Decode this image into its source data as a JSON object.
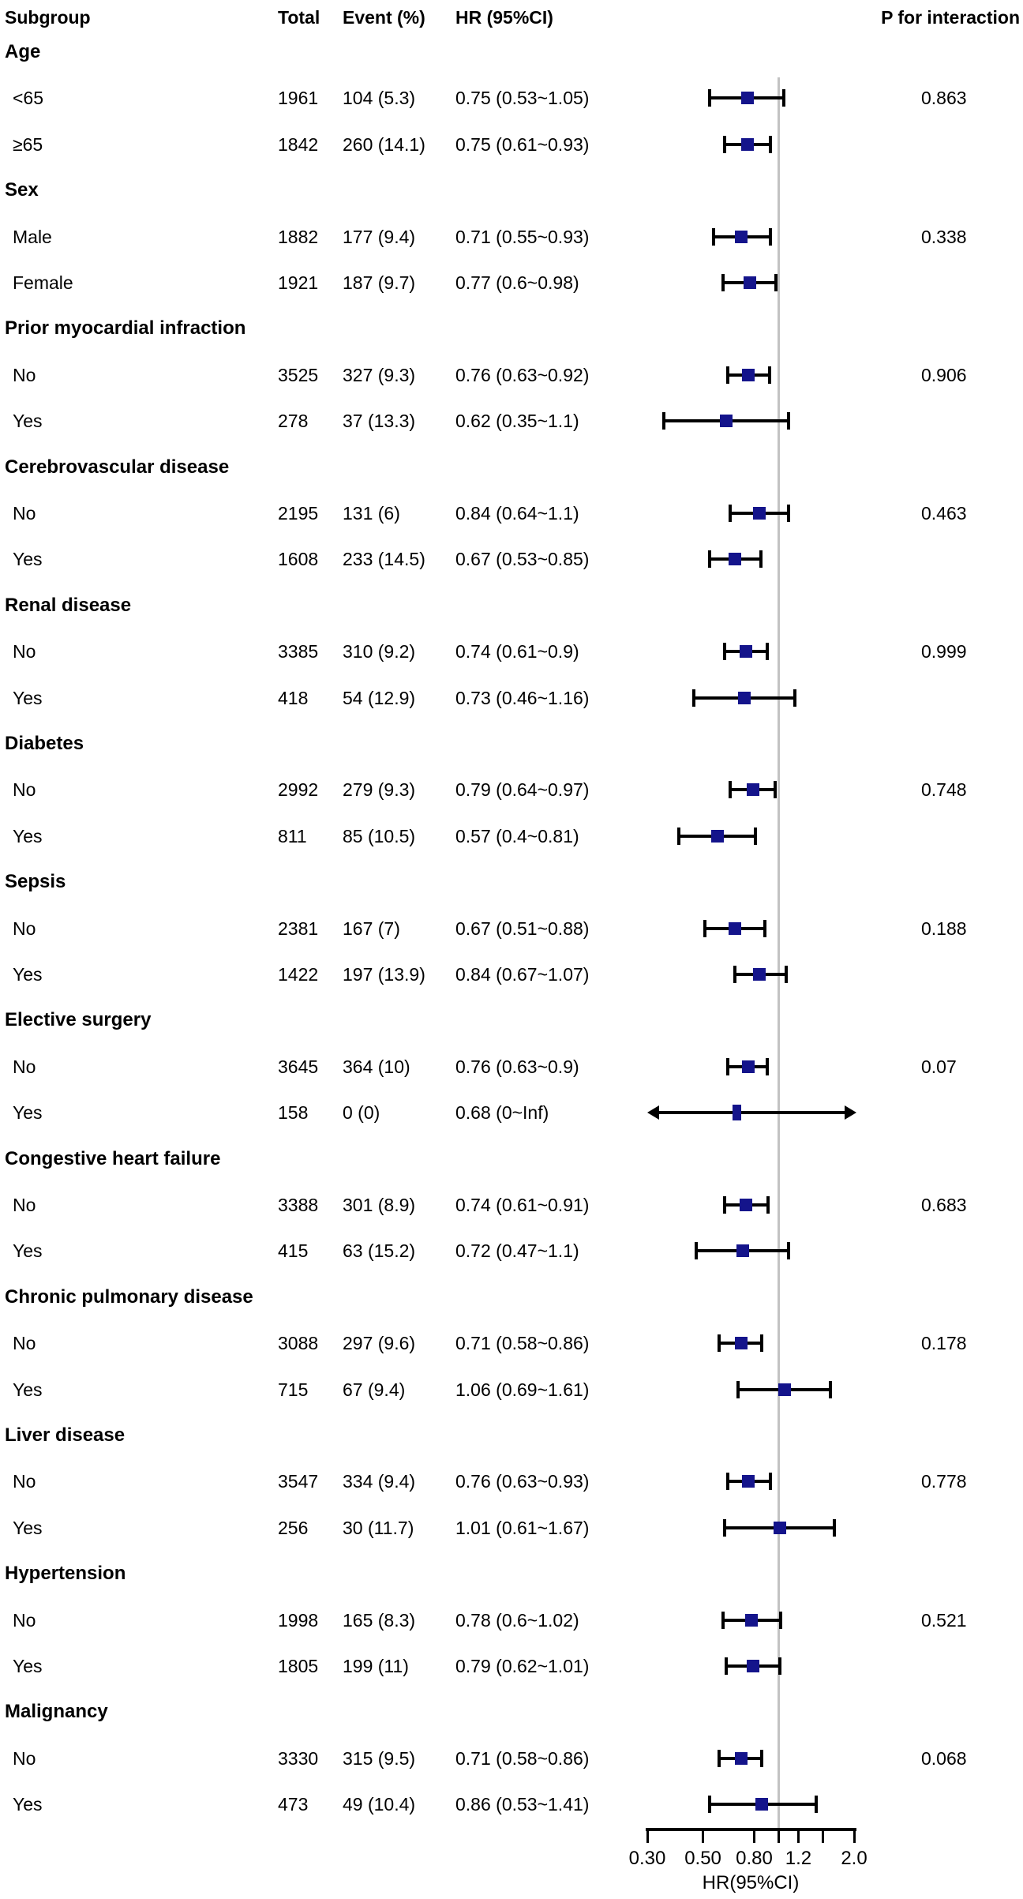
{
  "header": {
    "subgroup": "Subgroup",
    "total": "Total",
    "event": "Event (%)",
    "hr": "HR (95%CI)",
    "p_interaction": "P for interaction"
  },
  "colors": {
    "marker": "#14148b",
    "ci_bar": "#000000",
    "reference_line": "#c2c2c2"
  },
  "chart_data": {
    "type": "scatter",
    "subtype": "forest-plot",
    "xlabel": "HR(95%CI)",
    "x_scale": "log",
    "xlim": [
      0.3,
      2.0
    ],
    "reference_line": 1.0,
    "x_ticks": [
      {
        "value": 0.3,
        "label": "0.30"
      },
      {
        "value": 0.5,
        "label": "0.50"
      },
      {
        "value": 0.8,
        "label": "0.80"
      },
      {
        "value": 1.0,
        "label": null
      },
      {
        "value": 1.2,
        "label": "1.2"
      },
      {
        "value": 1.5,
        "label": null
      },
      {
        "value": 2.0,
        "label": "2.0"
      }
    ],
    "sections": [
      {
        "group": "Age",
        "p_interaction": "0.863",
        "rows": [
          {
            "label": "<65",
            "total": "1961",
            "event": "104 (5.3)",
            "hr_text": "0.75 (0.53~1.05)",
            "hr": 0.75,
            "lo": 0.53,
            "hi": 1.05
          },
          {
            "label": "≥65",
            "total": "1842",
            "event": "260 (14.1)",
            "hr_text": "0.75 (0.61~0.93)",
            "hr": 0.75,
            "lo": 0.61,
            "hi": 0.93
          }
        ]
      },
      {
        "group": "Sex",
        "p_interaction": "0.338",
        "rows": [
          {
            "label": "Male",
            "total": "1882",
            "event": "177 (9.4)",
            "hr_text": "0.71 (0.55~0.93)",
            "hr": 0.71,
            "lo": 0.55,
            "hi": 0.93
          },
          {
            "label": "Female",
            "total": "1921",
            "event": "187 (9.7)",
            "hr_text": "0.77 (0.6~0.98)",
            "hr": 0.77,
            "lo": 0.6,
            "hi": 0.98
          }
        ]
      },
      {
        "group": "Prior myocardial infraction",
        "p_interaction": "0.906",
        "rows": [
          {
            "label": "No",
            "total": "3525",
            "event": "327 (9.3)",
            "hr_text": "0.76 (0.63~0.92)",
            "hr": 0.76,
            "lo": 0.63,
            "hi": 0.92
          },
          {
            "label": "Yes",
            "total": "278",
            "event": "37 (13.3)",
            "hr_text": "0.62 (0.35~1.1)",
            "hr": 0.62,
            "lo": 0.35,
            "hi": 1.1
          }
        ]
      },
      {
        "group": "Cerebrovascular disease",
        "p_interaction": "0.463",
        "rows": [
          {
            "label": "No",
            "total": "2195",
            "event": "131 (6)",
            "hr_text": "0.84 (0.64~1.1)",
            "hr": 0.84,
            "lo": 0.64,
            "hi": 1.1
          },
          {
            "label": "Yes",
            "total": "1608",
            "event": "233 (14.5)",
            "hr_text": "0.67 (0.53~0.85)",
            "hr": 0.67,
            "lo": 0.53,
            "hi": 0.85
          }
        ]
      },
      {
        "group": "Renal disease",
        "p_interaction": "0.999",
        "rows": [
          {
            "label": "No",
            "total": "3385",
            "event": "310 (9.2)",
            "hr_text": "0.74 (0.61~0.9)",
            "hr": 0.74,
            "lo": 0.61,
            "hi": 0.9
          },
          {
            "label": "Yes",
            "total": "418",
            "event": "54 (12.9)",
            "hr_text": "0.73 (0.46~1.16)",
            "hr": 0.73,
            "lo": 0.46,
            "hi": 1.16
          }
        ]
      },
      {
        "group": "Diabetes",
        "p_interaction": "0.748",
        "rows": [
          {
            "label": "No",
            "total": "2992",
            "event": "279 (9.3)",
            "hr_text": "0.79 (0.64~0.97)",
            "hr": 0.79,
            "lo": 0.64,
            "hi": 0.97
          },
          {
            "label": "Yes",
            "total": "811",
            "event": "85 (10.5)",
            "hr_text": "0.57 (0.4~0.81)",
            "hr": 0.57,
            "lo": 0.4,
            "hi": 0.81
          }
        ]
      },
      {
        "group": "Sepsis",
        "p_interaction": "0.188",
        "rows": [
          {
            "label": "No",
            "total": "2381",
            "event": "167 (7)",
            "hr_text": "0.67 (0.51~0.88)",
            "hr": 0.67,
            "lo": 0.51,
            "hi": 0.88
          },
          {
            "label": "Yes",
            "total": "1422",
            "event": "197 (13.9)",
            "hr_text": "0.84 (0.67~1.07)",
            "hr": 0.84,
            "lo": 0.67,
            "hi": 1.07
          }
        ]
      },
      {
        "group": "Elective surgery",
        "p_interaction": "0.07",
        "rows": [
          {
            "label": "No",
            "total": "3645",
            "event": "364 (10)",
            "hr_text": "0.76 (0.63~0.9)",
            "hr": 0.76,
            "lo": 0.63,
            "hi": 0.9
          },
          {
            "label": "Yes",
            "total": "158",
            "event": "0 (0)",
            "hr_text": "0.68 (0~Inf)",
            "hr": 0.68,
            "lo": 0,
            "hi": null,
            "arrow": true
          }
        ]
      },
      {
        "group": "Congestive heart failure",
        "p_interaction": "0.683",
        "rows": [
          {
            "label": "No",
            "total": "3388",
            "event": "301 (8.9)",
            "hr_text": "0.74 (0.61~0.91)",
            "hr": 0.74,
            "lo": 0.61,
            "hi": 0.91
          },
          {
            "label": "Yes",
            "total": "415",
            "event": "63 (15.2)",
            "hr_text": "0.72 (0.47~1.1)",
            "hr": 0.72,
            "lo": 0.47,
            "hi": 1.1
          }
        ]
      },
      {
        "group": "Chronic pulmonary disease",
        "p_interaction": "0.178",
        "rows": [
          {
            "label": "No",
            "total": "3088",
            "event": "297 (9.6)",
            "hr_text": "0.71 (0.58~0.86)",
            "hr": 0.71,
            "lo": 0.58,
            "hi": 0.86
          },
          {
            "label": "Yes",
            "total": "715",
            "event": "67 (9.4)",
            "hr_text": "1.06 (0.69~1.61)",
            "hr": 1.06,
            "lo": 0.69,
            "hi": 1.61
          }
        ]
      },
      {
        "group": "Liver disease",
        "p_interaction": "0.778",
        "rows": [
          {
            "label": "No",
            "total": "3547",
            "event": "334 (9.4)",
            "hr_text": "0.76 (0.63~0.93)",
            "hr": 0.76,
            "lo": 0.63,
            "hi": 0.93
          },
          {
            "label": "Yes",
            "total": "256",
            "event": "30 (11.7)",
            "hr_text": "1.01 (0.61~1.67)",
            "hr": 1.01,
            "lo": 0.61,
            "hi": 1.67
          }
        ]
      },
      {
        "group": "Hypertension",
        "p_interaction": "0.521",
        "rows": [
          {
            "label": "No",
            "total": "1998",
            "event": "165 (8.3)",
            "hr_text": "0.78 (0.6~1.02)",
            "hr": 0.78,
            "lo": 0.6,
            "hi": 1.02
          },
          {
            "label": "Yes",
            "total": "1805",
            "event": "199 (11)",
            "hr_text": "0.79 (0.62~1.01)",
            "hr": 0.79,
            "lo": 0.62,
            "hi": 1.01
          }
        ]
      },
      {
        "group": "Malignancy",
        "p_interaction": "0.068",
        "rows": [
          {
            "label": "No",
            "total": "3330",
            "event": "315 (9.5)",
            "hr_text": "0.71 (0.58~0.86)",
            "hr": 0.71,
            "lo": 0.58,
            "hi": 0.86
          },
          {
            "label": "Yes",
            "total": "473",
            "event": "49 (10.4)",
            "hr_text": "0.86 (0.53~1.41)",
            "hr": 0.86,
            "lo": 0.53,
            "hi": 1.41
          }
        ]
      }
    ]
  }
}
